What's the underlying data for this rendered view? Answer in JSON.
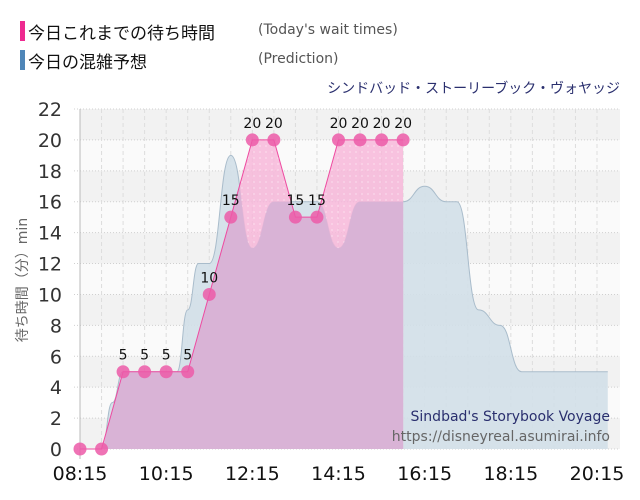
{
  "legend": {
    "items": [
      {
        "label_jp": "今日これまでの待ち時間",
        "label_en": "(Today's wait times)",
        "color": "#ee2a90"
      },
      {
        "label_jp": "今日の混雑予想",
        "label_en": "(Prediction)",
        "color": "#4f86b8"
      }
    ]
  },
  "subtitle": "シンドバッド・ストーリーブック・ヴォヤッジ",
  "watermark": {
    "title": "Sindbad's Storybook Voyage",
    "url": "https://disneyreal.asumirai.info"
  },
  "y_axis_label": "待ち時間（分）min",
  "colors": {
    "actual_fill": "#f7b7d9",
    "actual_line": "#ee4aa0",
    "actual_marker": "#ec5aa8",
    "prediction_fill": "#d2dfe8",
    "prediction_line": "#a9bccb",
    "overlap_fill": "#d9b3d6"
  },
  "chart_data": {
    "type": "area",
    "title": "シンドバッド・ストーリーブック・ヴォヤッジ",
    "xlabel": "",
    "ylabel": "待ち時間（分）min",
    "ylim": [
      0,
      22
    ],
    "yticks": [
      0,
      2,
      4,
      6,
      8,
      10,
      12,
      14,
      16,
      18,
      20,
      22
    ],
    "xticks": [
      "08:15",
      "10:15",
      "12:15",
      "14:15",
      "16:15",
      "18:15",
      "20:15"
    ],
    "grid": true,
    "legend_position": "top-left",
    "series": [
      {
        "name": "今日これまでの待ち時間 (Today's wait times)",
        "x": [
          "08:15",
          "08:45",
          "09:15",
          "09:45",
          "10:15",
          "10:45",
          "11:15",
          "11:45",
          "12:15",
          "12:45",
          "13:15",
          "13:45",
          "14:15",
          "14:45",
          "15:15",
          "15:45"
        ],
        "values": [
          0,
          0,
          5,
          5,
          5,
          5,
          10,
          15,
          20,
          20,
          15,
          15,
          20,
          20,
          20,
          20
        ],
        "labels": [
          "",
          "",
          "5",
          "5",
          "5",
          "5",
          "10",
          "15",
          "20",
          "20",
          "15",
          "15",
          "20",
          "20",
          "20",
          "20"
        ]
      },
      {
        "name": "今日の混雑予想 (Prediction)",
        "x": [
          "08:15",
          "08:45",
          "09:00",
          "09:15",
          "09:45",
          "10:15",
          "10:30",
          "10:45",
          "11:00",
          "11:15",
          "11:45",
          "12:15",
          "12:45",
          "13:15",
          "13:45",
          "14:15",
          "14:45",
          "15:15",
          "15:45",
          "16:15",
          "16:45",
          "17:00",
          "17:30",
          "18:00",
          "18:30",
          "19:00",
          "19:30",
          "20:00",
          "20:30"
        ],
        "values": [
          0,
          0,
          3,
          5,
          5,
          5,
          5,
          9,
          12,
          12,
          19,
          13,
          16,
          16,
          16,
          13,
          16,
          16,
          16,
          17,
          16,
          16,
          9,
          8,
          5,
          5,
          5,
          5,
          5
        ]
      }
    ]
  }
}
